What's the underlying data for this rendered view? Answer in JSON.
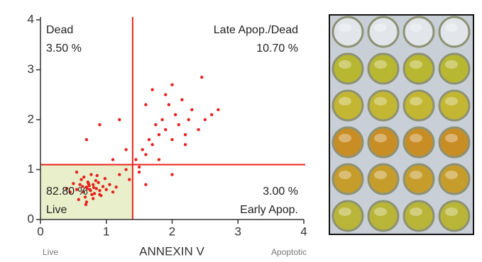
{
  "chart_data": {
    "type": "scatter",
    "x_label": "ANNEXIN V",
    "x_low_label": "Live",
    "x_high_label": "Apoptotic",
    "xlim": [
      0,
      4
    ],
    "ylim": [
      0,
      4
    ],
    "xticks": [
      0,
      1,
      2,
      3,
      4
    ],
    "yticks": [
      0,
      1,
      2,
      3,
      4
    ],
    "color": "#e8231f",
    "quadrant_x": 1.4,
    "quadrant_y": 1.1,
    "quadrant_fill": "#e9efcb",
    "annotations": {
      "upper_left": [
        "Dead",
        "3.50 %"
      ],
      "upper_right": [
        "Late Apop./Dead",
        "10.70 %"
      ],
      "lower_left": [
        "82.80 %",
        "Live"
      ],
      "lower_right": [
        "3.00 %",
        "Early Apop."
      ]
    },
    "x": [
      0.55,
      0.6,
      0.65,
      0.7,
      0.72,
      0.75,
      0.78,
      0.8,
      0.85,
      0.9,
      0.62,
      0.68,
      0.74,
      0.82,
      0.88,
      0.95,
      1.0,
      0.5,
      0.45,
      0.58,
      0.66,
      0.71,
      0.77,
      0.84,
      0.92,
      0.7,
      0.76,
      0.8,
      0.64,
      0.86,
      1.05,
      1.1,
      0.4,
      0.55,
      0.98,
      1.15,
      0.73,
      0.69,
      0.81,
      0.9,
      1.2,
      1.3,
      1.35,
      1.45,
      1.5,
      1.55,
      1.6,
      1.65,
      1.7,
      1.75,
      1.8,
      1.85,
      1.9,
      1.95,
      2.0,
      2.05,
      2.1,
      2.15,
      2.2,
      2.25,
      2.3,
      2.4,
      2.5,
      2.6,
      2.7,
      1.6,
      1.7,
      1.9,
      2.0,
      2.2,
      1.3,
      1.5,
      1.8,
      2.45,
      1.1,
      0.7,
      0.9,
      1.2,
      1.6,
      2.0
    ],
    "values": [
      0.6,
      0.7,
      0.55,
      0.65,
      0.75,
      0.6,
      0.5,
      0.7,
      0.62,
      0.58,
      0.8,
      0.45,
      0.68,
      0.52,
      0.74,
      0.66,
      0.6,
      0.72,
      0.55,
      0.4,
      0.85,
      0.62,
      0.9,
      0.78,
      0.48,
      0.35,
      0.58,
      0.42,
      0.66,
      0.88,
      0.7,
      0.55,
      0.62,
      0.95,
      0.82,
      0.65,
      0.72,
      0.3,
      0.64,
      0.5,
      0.9,
      1.0,
      0.8,
      1.2,
      1.05,
      1.4,
      1.3,
      1.6,
      1.5,
      1.9,
      1.7,
      2.0,
      1.8,
      2.3,
      1.6,
      2.1,
      1.9,
      2.4,
      1.7,
      2.0,
      2.2,
      1.8,
      2.0,
      2.1,
      2.2,
      2.3,
      2.6,
      2.5,
      2.7,
      1.5,
      1.4,
      0.95,
      1.2,
      2.85,
      1.2,
      1.6,
      1.9,
      2.0,
      0.7,
      0.9
    ]
  }
}
